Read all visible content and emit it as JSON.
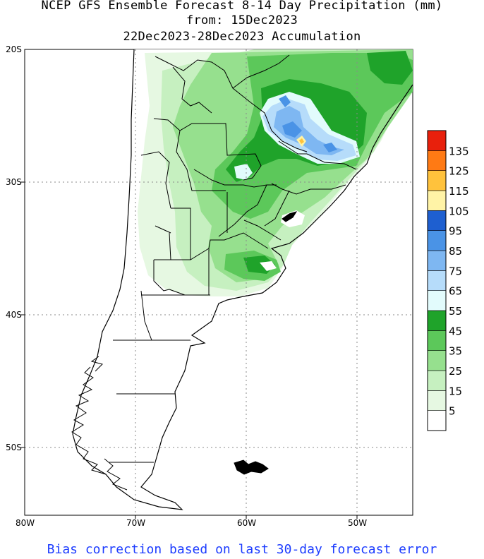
{
  "title": {
    "line1": "NCEP GFS Ensemble Forecast 8-14 Day Precipitation (mm)",
    "line2": "from: 15Dec2023",
    "line3": "22Dec2023-28Dec2023 Accumulation"
  },
  "footer": "Bias correction based on last 30-day forecast error",
  "axes": {
    "lat_labels": [
      "20S",
      "30S",
      "40S",
      "50S"
    ],
    "lon_labels": [
      "80W",
      "70W",
      "60W",
      "50W"
    ]
  },
  "legend": {
    "levels": [
      "5",
      "15",
      "25",
      "35",
      "45",
      "55",
      "65",
      "75",
      "85",
      "95",
      "105",
      "115",
      "125",
      "135"
    ],
    "colors": [
      "#ffffff",
      "#e6f8e2",
      "#c6f0c0",
      "#96e08e",
      "#5cc85a",
      "#1fa32a",
      "#e2fbfc",
      "#b6dcfa",
      "#7eb7f2",
      "#4a93e6",
      "#1e5fd0",
      "#fff3a6",
      "#ffc23c",
      "#ff7a14",
      "#e8200c"
    ]
  },
  "colors": {
    "ocean": "#ffffff",
    "land_dry": "#ffffff",
    "border": "#000000",
    "grid": "#8a8a8a",
    "footer_text": "#1c3cff"
  }
}
